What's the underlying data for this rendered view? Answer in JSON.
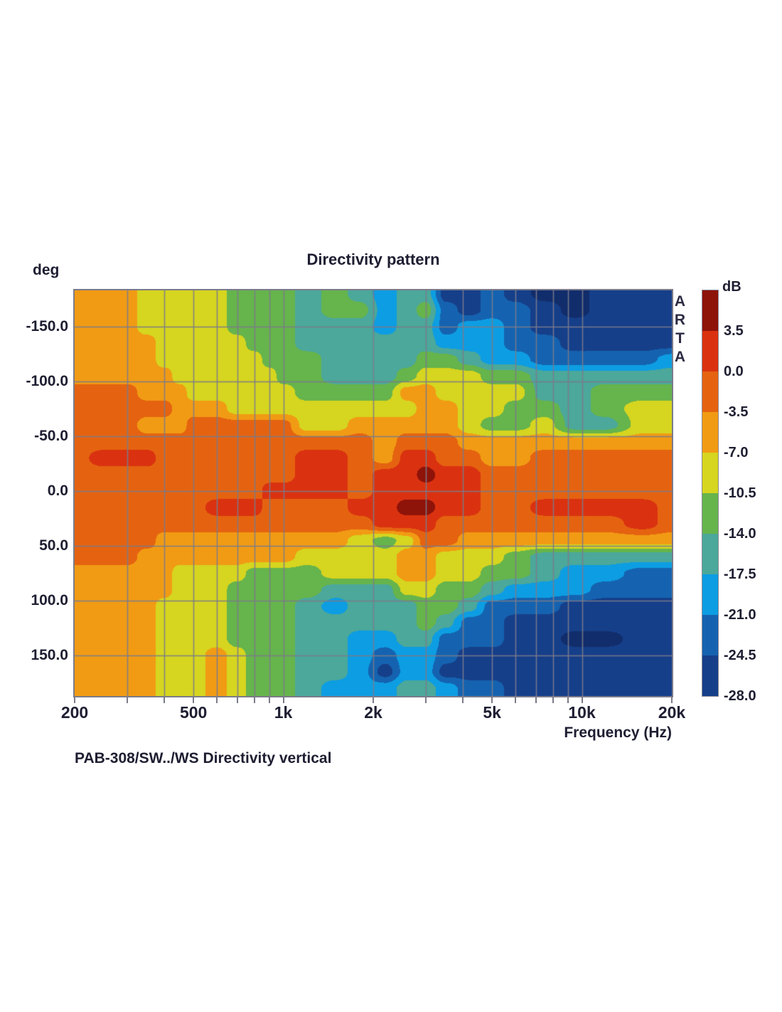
{
  "header": {
    "title": "Directivity pattern"
  },
  "caption": "PAB-308/SW../WS  Directivity vertical",
  "watermark": "ARTA",
  "chart_data": {
    "type": "heatmap",
    "title": "Directivity pattern",
    "xlabel": "Frequency (Hz)",
    "ylabel": "deg",
    "x_scale": "log",
    "x_range_hz": [
      200,
      20000
    ],
    "y_range_deg": [
      -183,
      187
    ],
    "grid": true,
    "grid_color": "#7b7b8a",
    "x_tick_labels": [
      "200",
      "500",
      "1k",
      "2k",
      "5k",
      "10k",
      "20k"
    ],
    "x_tick_hz": [
      200,
      500,
      1000,
      2000,
      5000,
      10000,
      20000
    ],
    "x_grid_hz": [
      300,
      400,
      500,
      600,
      700,
      800,
      900,
      1000,
      2000,
      3000,
      4000,
      5000,
      6000,
      7000,
      8000,
      9000,
      10000
    ],
    "y_tick_labels": [
      "-150.0",
      "-100.0",
      "-50.0",
      "0.0",
      "50.0",
      "100.0",
      "150.0"
    ],
    "y_tick_deg": [
      -150,
      -100,
      -50,
      0,
      50,
      100,
      150
    ],
    "colorbar": {
      "label": "dB",
      "tick_labels": [
        "3.5",
        "0.0",
        "-3.5",
        "-7.0",
        "-10.5",
        "-14.0",
        "-17.5",
        "-21.0",
        "-24.5",
        "-28.0"
      ],
      "band_edges_db": [
        3.5,
        0,
        -3.5,
        -7,
        -10.5,
        -14,
        -17.5,
        -21,
        -24.5,
        -28
      ],
      "band_colors": [
        "#8e1309",
        "#da3210",
        "#e56310",
        "#f19b14",
        "#d6d51f",
        "#66b44c",
        "#4ba89a",
        "#0d9de2",
        "#1563b0",
        "#163f8a"
      ],
      "below_min_color": "#112d6b",
      "position": "right"
    },
    "frequencies_hz": [
      200,
      250,
      300,
      350,
      400,
      450,
      500,
      600,
      700,
      800,
      900,
      1000,
      1200,
      1500,
      1800,
      2200,
      2600,
      3000,
      3500,
      4200,
      5000,
      6000,
      7500,
      9500,
      12000,
      16000,
      20000
    ],
    "angles_deg": [
      -180,
      -165,
      -150,
      -135,
      -120,
      -105,
      -90,
      -75,
      -60,
      -45,
      -30,
      -15,
      0,
      15,
      30,
      45,
      60,
      75,
      90,
      105,
      120,
      135,
      150,
      165,
      180
    ],
    "values_db": [
      [
        -5.2,
        -5.2,
        -5.2,
        -8.8,
        -8.8,
        -8.8,
        -8.8,
        -8.8,
        -12.2,
        -12.2,
        -12.2,
        -12.2,
        -15.8,
        -12.2,
        -15.8,
        -19.2,
        -15.8,
        -15.8,
        -26.2,
        -26.2,
        -22.8,
        -26.2,
        -29.5,
        -29.5,
        -26.2,
        -26.2,
        -26.2
      ],
      [
        -5.2,
        -5.2,
        -5.2,
        -8.8,
        -8.8,
        -8.8,
        -8.8,
        -8.8,
        -12.2,
        -12.2,
        -12.2,
        -12.2,
        -15.8,
        -12.2,
        -12.2,
        -19.2,
        -15.8,
        -12.2,
        -22.8,
        -26.2,
        -22.8,
        -22.8,
        -26.2,
        -29.5,
        -26.2,
        -26.2,
        -26.2
      ],
      [
        -5.2,
        -5.2,
        -5.2,
        -8.8,
        -8.8,
        -8.8,
        -8.8,
        -8.8,
        -12.2,
        -12.2,
        -12.2,
        -12.2,
        -15.8,
        -15.8,
        -15.8,
        -19.2,
        -15.8,
        -15.8,
        -22.8,
        -19.2,
        -19.2,
        -22.8,
        -26.2,
        -26.2,
        -26.2,
        -26.2,
        -26.2
      ],
      [
        -5.2,
        -5.2,
        -5.2,
        -5.2,
        -8.8,
        -8.8,
        -8.8,
        -8.8,
        -8.8,
        -12.2,
        -12.2,
        -12.2,
        -15.8,
        -15.8,
        -15.8,
        -15.8,
        -15.8,
        -15.8,
        -19.2,
        -19.2,
        -19.2,
        -22.8,
        -22.8,
        -26.2,
        -26.2,
        -26.2,
        -26.2
      ],
      [
        -5.2,
        -5.2,
        -5.2,
        -5.2,
        -8.8,
        -8.8,
        -8.8,
        -8.8,
        -8.8,
        -8.8,
        -12.2,
        -12.2,
        -12.2,
        -15.8,
        -15.8,
        -15.8,
        -15.8,
        -12.2,
        -12.2,
        -15.8,
        -19.2,
        -19.2,
        -22.8,
        -22.8,
        -22.8,
        -22.8,
        -19.2
      ],
      [
        -5.2,
        -5.2,
        -5.2,
        -5.2,
        -5.2,
        -8.8,
        -8.8,
        -8.8,
        -8.8,
        -8.8,
        -8.8,
        -12.2,
        -12.2,
        -15.8,
        -15.8,
        -15.8,
        -12.2,
        -8.8,
        -8.8,
        -8.8,
        -12.2,
        -12.2,
        -15.8,
        -15.8,
        -15.8,
        -15.8,
        -15.8
      ],
      [
        -1.8,
        -1.8,
        -1.8,
        -5.2,
        -5.2,
        -5.2,
        -8.8,
        -8.8,
        -8.8,
        -8.8,
        -8.8,
        -8.8,
        -12.2,
        -12.2,
        -12.2,
        -12.2,
        -5.2,
        -5.2,
        -8.8,
        -8.8,
        -8.8,
        -8.8,
        -15.8,
        -15.8,
        -12.2,
        -12.2,
        -12.2
      ],
      [
        -1.8,
        -1.8,
        -1.8,
        -1.8,
        -1.8,
        -5.2,
        -5.2,
        -5.2,
        -8.8,
        -8.8,
        -8.8,
        -8.8,
        -8.8,
        -8.8,
        -8.8,
        -8.8,
        -8.8,
        -5.2,
        -5.2,
        -8.8,
        -8.8,
        -12.2,
        -12.2,
        -15.8,
        -12.2,
        -8.8,
        -8.8
      ],
      [
        -1.8,
        -1.8,
        -1.8,
        -5.2,
        -5.2,
        -5.2,
        -1.8,
        -1.8,
        -1.8,
        -1.8,
        -1.8,
        -1.8,
        -8.8,
        -8.8,
        -5.2,
        -5.2,
        -5.2,
        -5.2,
        -5.2,
        -8.8,
        -12.2,
        -12.2,
        -8.8,
        -15.8,
        -15.8,
        -8.8,
        -8.8
      ],
      [
        -1.8,
        -1.8,
        -1.8,
        -1.8,
        -1.8,
        -1.8,
        -1.8,
        -1.8,
        -1.8,
        -1.8,
        -1.8,
        -1.8,
        -1.8,
        -1.8,
        -1.8,
        -5.2,
        -1.8,
        -1.8,
        -1.8,
        -5.2,
        -5.2,
        -5.2,
        -5.2,
        -5.2,
        -5.2,
        -5.2,
        -5.2
      ],
      [
        -1.8,
        1.8,
        1.8,
        1.8,
        -1.8,
        -1.8,
        -1.8,
        -1.8,
        -1.8,
        -1.8,
        -1.8,
        -1.8,
        1.8,
        1.8,
        -1.8,
        -5.2,
        1.8,
        1.8,
        -1.8,
        -1.8,
        -5.2,
        -5.2,
        -1.8,
        -1.8,
        -1.8,
        -1.8,
        -1.8
      ],
      [
        -1.8,
        -1.8,
        -1.8,
        -1.8,
        -1.8,
        -1.8,
        -1.8,
        -1.8,
        -1.8,
        -1.8,
        -1.8,
        -1.8,
        1.8,
        1.8,
        -1.8,
        1.8,
        1.8,
        5,
        1.8,
        1.8,
        -1.8,
        -1.8,
        -1.8,
        -1.8,
        -1.8,
        -1.8,
        -1.8
      ],
      [
        -1.8,
        -1.8,
        -1.8,
        -1.8,
        -1.8,
        -1.8,
        -1.8,
        -1.8,
        -1.8,
        -1.8,
        1.8,
        1.8,
        1.8,
        1.8,
        -1.8,
        1.8,
        1.8,
        1.8,
        1.8,
        1.8,
        -1.8,
        -1.8,
        -1.8,
        -1.8,
        -1.8,
        -1.8,
        -1.8
      ],
      [
        -1.8,
        -1.8,
        -1.8,
        -1.8,
        -1.8,
        -1.8,
        -1.8,
        1.8,
        1.8,
        1.8,
        -1.8,
        -1.8,
        -1.8,
        -1.8,
        1.8,
        1.8,
        5,
        5,
        1.8,
        1.8,
        -1.8,
        -1.8,
        1.8,
        1.8,
        1.8,
        1.8,
        -1.8
      ],
      [
        -1.8,
        -1.8,
        -1.8,
        -1.8,
        -1.8,
        -1.8,
        -1.8,
        -1.8,
        -1.8,
        -1.8,
        -1.8,
        -1.8,
        -1.8,
        -1.8,
        -1.8,
        1.8,
        1.8,
        1.8,
        -1.8,
        -1.8,
        -1.8,
        -1.8,
        -1.8,
        -1.8,
        -1.8,
        1.8,
        -1.8
      ],
      [
        -1.8,
        -1.8,
        -1.8,
        -1.8,
        -5.2,
        -5.2,
        -5.2,
        -5.2,
        -5.2,
        -5.2,
        -5.2,
        -5.2,
        -5.2,
        -5.2,
        -8.8,
        -12.2,
        -8.8,
        -1.8,
        -1.8,
        -5.2,
        -5.2,
        -5.2,
        -5.2,
        -5.2,
        -5.2,
        -5.2,
        -5.2
      ],
      [
        -1.8,
        -1.8,
        -1.8,
        -5.2,
        -5.2,
        -5.2,
        -5.2,
        -5.2,
        -5.2,
        -5.2,
        -5.2,
        -5.2,
        -8.8,
        -8.8,
        -8.8,
        -8.8,
        -5.2,
        -5.2,
        -8.8,
        -8.8,
        -8.8,
        -12.2,
        -15.8,
        -15.8,
        -15.8,
        -15.8,
        -15.8
      ],
      [
        -5.2,
        -5.2,
        -5.2,
        -5.2,
        -5.2,
        -8.8,
        -8.8,
        -8.8,
        -8.8,
        -12.2,
        -12.2,
        -12.2,
        -12.2,
        -8.8,
        -8.8,
        -8.8,
        -5.2,
        -5.2,
        -8.8,
        -8.8,
        -12.2,
        -12.2,
        -15.8,
        -19.2,
        -19.2,
        -22.8,
        -22.8
      ],
      [
        -5.2,
        -5.2,
        -5.2,
        -5.2,
        -5.2,
        -8.8,
        -8.8,
        -8.8,
        -12.2,
        -12.2,
        -12.2,
        -12.2,
        -12.2,
        -15.8,
        -15.8,
        -15.8,
        -8.8,
        -8.8,
        -12.2,
        -12.2,
        -15.8,
        -19.2,
        -19.2,
        -19.2,
        -22.8,
        -22.8,
        -22.8
      ],
      [
        -5.2,
        -5.2,
        -5.2,
        -5.2,
        -8.8,
        -8.8,
        -8.8,
        -8.8,
        -12.2,
        -12.2,
        -12.2,
        -12.2,
        -15.8,
        -19.2,
        -15.8,
        -15.8,
        -15.8,
        -12.2,
        -12.2,
        -15.8,
        -22.8,
        -22.8,
        -22.8,
        -26.2,
        -26.2,
        -26.2,
        -26.2
      ],
      [
        -5.2,
        -5.2,
        -5.2,
        -5.2,
        -8.8,
        -8.8,
        -8.8,
        -8.8,
        -12.2,
        -12.2,
        -12.2,
        -12.2,
        -15.8,
        -15.8,
        -15.8,
        -15.8,
        -15.8,
        -12.2,
        -15.8,
        -22.8,
        -22.8,
        -26.2,
        -26.2,
        -26.2,
        -26.2,
        -26.2,
        -26.2
      ],
      [
        -5.2,
        -5.2,
        -5.2,
        -5.2,
        -8.8,
        -8.8,
        -8.8,
        -8.8,
        -12.2,
        -12.2,
        -12.2,
        -12.2,
        -15.8,
        -15.8,
        -19.2,
        -19.2,
        -15.8,
        -15.8,
        -22.8,
        -22.8,
        -22.8,
        -26.2,
        -26.2,
        -29.5,
        -29.5,
        -26.2,
        -26.2
      ],
      [
        -5.2,
        -5.2,
        -5.2,
        -5.2,
        -8.8,
        -8.8,
        -8.8,
        -5.2,
        -8.8,
        -12.2,
        -12.2,
        -12.2,
        -15.8,
        -15.8,
        -19.2,
        -22.8,
        -19.2,
        -19.2,
        -22.8,
        -26.2,
        -26.2,
        -26.2,
        -26.2,
        -26.2,
        -26.2,
        -26.2,
        -26.2
      ],
      [
        -5.2,
        -5.2,
        -5.2,
        -5.2,
        -8.8,
        -8.8,
        -8.8,
        -5.2,
        -8.8,
        -12.2,
        -12.2,
        -12.2,
        -15.8,
        -15.8,
        -19.2,
        -26.2,
        -19.2,
        -19.2,
        -26.2,
        -26.2,
        -26.2,
        -26.2,
        -26.2,
        -26.2,
        -26.2,
        -26.2,
        -26.2
      ],
      [
        -5.2,
        -5.2,
        -5.2,
        -5.2,
        -8.8,
        -8.8,
        -8.8,
        -5.2,
        -8.8,
        -12.2,
        -12.2,
        -12.2,
        -15.8,
        -19.2,
        -19.2,
        -19.2,
        -15.8,
        -15.8,
        -19.2,
        -22.8,
        -22.8,
        -26.2,
        -26.2,
        -26.2,
        -26.2,
        -26.2,
        -26.2
      ]
    ]
  }
}
